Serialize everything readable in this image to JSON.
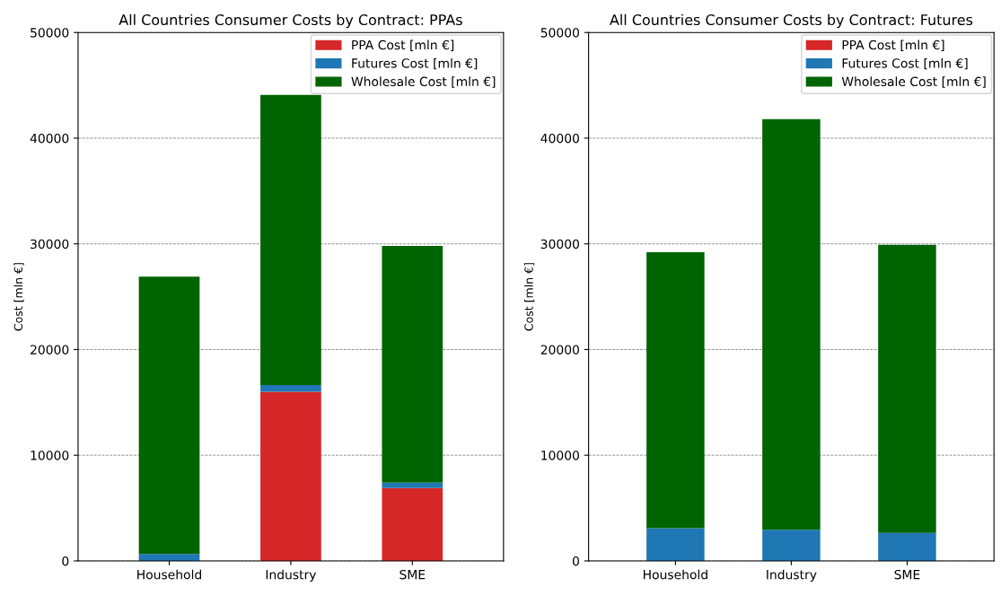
{
  "chart_data": [
    {
      "type": "bar",
      "title": "All Countries Consumer Costs by Contract: PPAs",
      "ylabel": "Cost [mln €]",
      "categories": [
        "Household",
        "Industry",
        "SME"
      ],
      "stacked": true,
      "ylim": [
        0,
        50000
      ],
      "yticks": [
        0,
        10000,
        20000,
        30000,
        40000,
        50000
      ],
      "grid": "y",
      "legend": "top right",
      "series": [
        {
          "name": "PPA Cost [mln €]",
          "color": "#d62728",
          "values": [
            0,
            16000,
            6900
          ]
        },
        {
          "name": "Futures Cost [mln €]",
          "color": "#1f77b4",
          "values": [
            650,
            650,
            500
          ]
        },
        {
          "name": "Wholesale Cost [mln €]",
          "color": "#006400",
          "values": [
            26250,
            27450,
            22400
          ]
        }
      ]
    },
    {
      "type": "bar",
      "title": "All Countries Consumer Costs by Contract: Futures",
      "ylabel": "Cost [mln €]",
      "categories": [
        "Household",
        "Industry",
        "SME"
      ],
      "stacked": true,
      "ylim": [
        0,
        50000
      ],
      "yticks": [
        0,
        10000,
        20000,
        30000,
        40000,
        50000
      ],
      "grid": "y",
      "legend": "top right",
      "series": [
        {
          "name": "PPA Cost [mln €]",
          "color": "#d62728",
          "values": [
            0,
            0,
            0
          ]
        },
        {
          "name": "Futures Cost [mln €]",
          "color": "#1f77b4",
          "values": [
            3100,
            2950,
            2650
          ]
        },
        {
          "name": "Wholesale Cost [mln €]",
          "color": "#006400",
          "values": [
            26100,
            38850,
            27250
          ]
        }
      ]
    }
  ]
}
